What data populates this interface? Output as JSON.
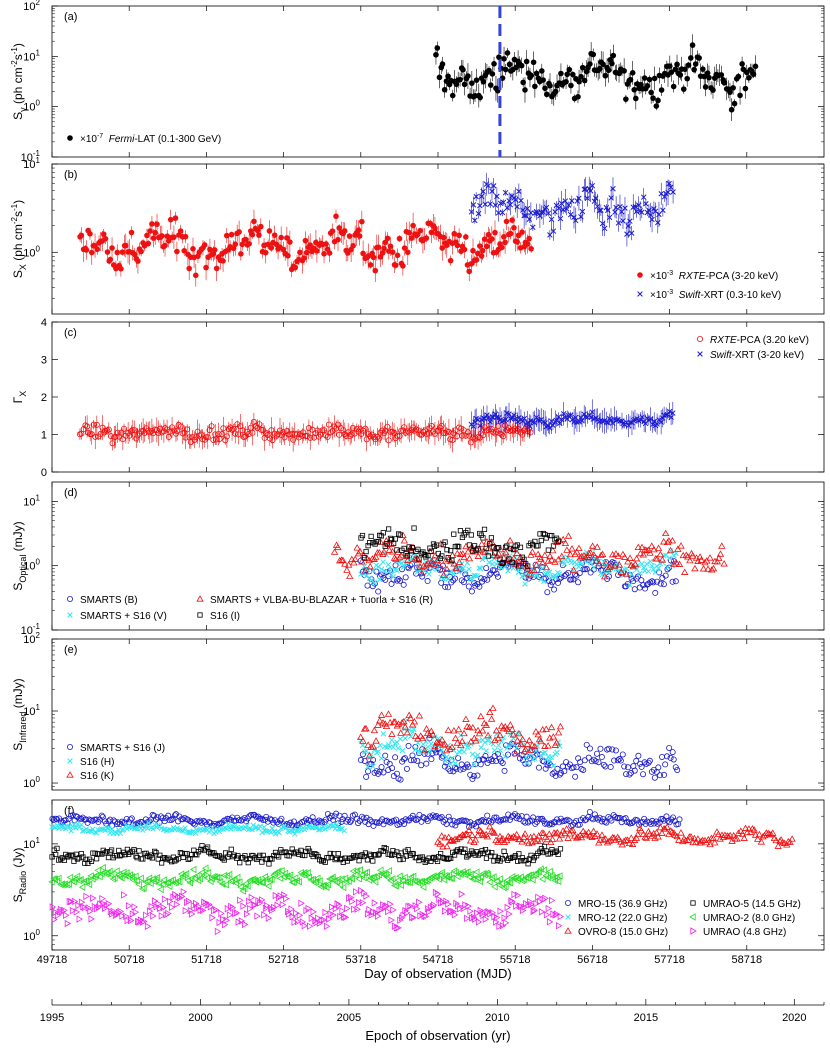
{
  "figure": {
    "colors": {
      "black": "#000000",
      "red": "#ee1111",
      "blue": "#1a1acc",
      "cyan": "#33e6f0",
      "green": "#22dd22",
      "magenta": "#ee22ee",
      "dash": "#3344dd"
    },
    "bottom_axis": {
      "label": "Day of observation (MJD)",
      "ticks": [
        "49718",
        "50718",
        "51718",
        "52718",
        "53718",
        "54718",
        "55718",
        "56718",
        "57718",
        "58718"
      ],
      "range": [
        49718,
        59718
      ]
    },
    "epoch_axis": {
      "label": "Epoch of observation (yr)",
      "ticks": [
        "1995",
        "2000",
        "2005",
        "2010",
        "2015",
        "2020"
      ],
      "range": [
        1995,
        2021
      ]
    }
  },
  "chart_data": [
    {
      "type": "scatter",
      "panel": "(a)",
      "yscale": "log",
      "ylim": [
        0.1,
        100
      ],
      "ylabel": {
        "main": "S",
        "sub": "γ",
        "unit": " (ph cm",
        "sup1": "-2",
        "mid": "s",
        "sup2": "-1",
        "end": ")"
      },
      "yticks": [
        {
          "v": 0.1,
          "b": "10",
          "e": "-1"
        },
        {
          "v": 1,
          "b": "10",
          "e": "0"
        },
        {
          "v": 10,
          "b": "10",
          "e": "1"
        },
        {
          "v": 100,
          "b": "10",
          "e": "2"
        }
      ],
      "vline_mjd": 55520,
      "legend": [
        {
          "marker": "dot",
          "color": "#000000",
          "factor": "×10",
          "factor_exp": "-7",
          "instrument": "Fermi",
          "suffix": "-LAT (0.1-300 GeV)"
        }
      ],
      "series": [
        {
          "name": "Fermi-LAT (0.1-300 GeV)",
          "color": "#000000",
          "marker": "dot",
          "mjd_range": [
            54690,
            58830
          ],
          "level": 4,
          "spread": 0.38
        }
      ]
    },
    {
      "type": "scatter",
      "panel": "(b)",
      "yscale": "log",
      "ylim": [
        0.2,
        10
      ],
      "ylabel": {
        "main": "S",
        "sub": "X",
        "unit": " (ph cm",
        "sup1": "-2",
        "mid": "s",
        "sup2": "-1",
        "end": ")"
      },
      "yticks": [
        {
          "v": 1,
          "b": "10",
          "e": "0"
        },
        {
          "v": 10,
          "b": "10",
          "e": "1"
        }
      ],
      "legend": [
        {
          "marker": "dot",
          "color": "#ee1111",
          "factor": "×10",
          "factor_exp": "-3",
          "instrument": "RXTE",
          "suffix": "-PCA (3-20 keV)"
        },
        {
          "marker": "x",
          "color": "#1a1acc",
          "factor": "×10",
          "factor_exp": "-3",
          "instrument": "Swift",
          "suffix": "-XRT (0.3-10 keV)"
        }
      ],
      "series": [
        {
          "name": "RXTE-PCA (3-20 keV)",
          "color": "#ee1111",
          "marker": "dot",
          "mjd_range": [
            50080,
            55920
          ],
          "level": 1.2,
          "spread": 0.22
        },
        {
          "name": "Swift-XRT (0.3-10 keV)",
          "color": "#1a1acc",
          "marker": "x",
          "mjd_range": [
            55150,
            57760
          ],
          "level": 3.2,
          "spread": 0.22
        }
      ]
    },
    {
      "type": "scatter",
      "panel": "(c)",
      "yscale": "linear",
      "ylim": [
        0,
        4
      ],
      "ylabel": {
        "main": "Γ",
        "sub": "X"
      },
      "yticks": [
        {
          "v": 0,
          "b": "0"
        },
        {
          "v": 1,
          "b": "1"
        },
        {
          "v": 2,
          "b": "2"
        },
        {
          "v": 3,
          "b": "3"
        },
        {
          "v": 4,
          "b": "4"
        }
      ],
      "legend": [
        {
          "marker": "circle",
          "color": "#ee1111",
          "instrument": "RXTE",
          "suffix": "-PCA (3.20 keV)"
        },
        {
          "marker": "x",
          "color": "#1a1acc",
          "instrument": "Swift",
          "suffix": "-XRT (3-20 keV)"
        }
      ],
      "series": [
        {
          "name": "RXTE-PCA (3.20 keV)",
          "color": "#ee1111",
          "marker": "circle",
          "mjd_range": [
            50080,
            55920
          ],
          "level": 1.05,
          "spread": 0.15
        },
        {
          "name": "Swift-XRT (3-20 keV)",
          "color": "#1a1acc",
          "marker": "x",
          "mjd_range": [
            55150,
            57760
          ],
          "level": 1.4,
          "spread": 0.12
        }
      ]
    },
    {
      "type": "scatter",
      "panel": "(d)",
      "yscale": "log",
      "ylim": [
        0.1,
        20
      ],
      "ylabel": {
        "main": "S",
        "sub": "Optical",
        "unit": " (mJy)"
      },
      "yticks": [
        {
          "v": 0.1,
          "b": "10",
          "e": "-1"
        },
        {
          "v": 1,
          "b": "10",
          "e": "0"
        },
        {
          "v": 10,
          "b": "10",
          "e": "1"
        }
      ],
      "legend": [
        {
          "marker": "circle",
          "color": "#1a1acc",
          "text": "SMARTS (B)"
        },
        {
          "marker": "triangle",
          "color": "#ee1111",
          "text": "SMARTS + VLBA-BU-BLAZAR + Tuorla + S16 (R)"
        },
        {
          "marker": "x",
          "color": "#33e6f0",
          "text": "SMARTS + S16 (V)"
        },
        {
          "marker": "square",
          "color": "#000000",
          "text": "S16 (I)"
        }
      ],
      "series": [
        {
          "name": "SMARTS (B)",
          "color": "#1a1acc",
          "marker": "circle",
          "mjd_range": [
            53720,
            57800
          ],
          "level": 0.75,
          "spread": 0.2
        },
        {
          "name": "SMARTS + S16 (V)",
          "color": "#33e6f0",
          "marker": "x",
          "mjd_range": [
            53720,
            57800
          ],
          "level": 0.95,
          "spread": 0.2
        },
        {
          "name": "SMARTS + VLBA-BU-BLAZAR + Tuorla + S16 (R)",
          "color": "#ee1111",
          "marker": "triangle",
          "mjd_range": [
            53380,
            58420
          ],
          "level": 1.4,
          "spread": 0.22
        },
        {
          "name": "S16 (I)",
          "color": "#000000",
          "marker": "square",
          "mjd_range": [
            53720,
            56280
          ],
          "level": 2.0,
          "spread": 0.25
        }
      ]
    },
    {
      "type": "scatter",
      "panel": "(e)",
      "yscale": "log",
      "ylim": [
        0.8,
        100
      ],
      "ylabel": {
        "main": "S",
        "sub": "Infrared",
        "unit": " (mJy)"
      },
      "yticks": [
        {
          "v": 1,
          "b": "10",
          "e": "0"
        },
        {
          "v": 10,
          "b": "10",
          "e": "1"
        },
        {
          "v": 100,
          "b": "10",
          "e": "2"
        }
      ],
      "legend": [
        {
          "marker": "circle",
          "color": "#1a1acc",
          "text": "SMARTS + S16 (J)"
        },
        {
          "marker": "x",
          "color": "#33e6f0",
          "text": "S16 (H)"
        },
        {
          "marker": "triangle",
          "color": "#ee1111",
          "text": "S16 (K)"
        }
      ],
      "series": [
        {
          "name": "SMARTS + S16 (J)",
          "color": "#1a1acc",
          "marker": "circle",
          "mjd_range": [
            53720,
            57820
          ],
          "level": 2.0,
          "spread": 0.2
        },
        {
          "name": "S16 (H)",
          "color": "#33e6f0",
          "marker": "x",
          "mjd_range": [
            53720,
            56300
          ],
          "level": 3.2,
          "spread": 0.22
        },
        {
          "name": "S16 (K)",
          "color": "#ee1111",
          "marker": "triangle",
          "mjd_range": [
            53720,
            56300
          ],
          "level": 5.0,
          "spread": 0.25
        }
      ]
    },
    {
      "type": "scatter",
      "panel": "(f)",
      "yscale": "log",
      "ylim": [
        0.7,
        30
      ],
      "ylabel": {
        "main": "S",
        "sub": "Radio",
        "unit": " (Jy)"
      },
      "yticks": [
        {
          "v": 1,
          "b": "10",
          "e": "0"
        },
        {
          "v": 10,
          "b": "10",
          "e": "1"
        }
      ],
      "legend": [
        {
          "marker": "circle",
          "color": "#1a1acc",
          "text": "MRO-15 (36.9 GHz)"
        },
        {
          "marker": "x",
          "color": "#33e6f0",
          "text": "MRO-12 (22.0 GHz)"
        },
        {
          "marker": "triangle",
          "color": "#ee1111",
          "text": "OVRO-8 (15.0 GHz)"
        },
        {
          "marker": "square",
          "color": "#000000",
          "text": "UMRAO-5 (14.5 GHz)"
        },
        {
          "marker": "tri-left",
          "color": "#22dd22",
          "text": "UMRAO-2 (8.0 GHz)"
        },
        {
          "marker": "tri-right",
          "color": "#ee22ee",
          "text": "UMRAO (4.8 GHz)"
        }
      ],
      "series": [
        {
          "name": "MRO-15 (36.9 GHz)",
          "color": "#1a1acc",
          "marker": "circle",
          "mjd_range": [
            49720,
            57850
          ],
          "level": 18,
          "spread": 0.05
        },
        {
          "name": "MRO-12 (22.0 GHz)",
          "color": "#33e6f0",
          "marker": "x",
          "mjd_range": [
            49720,
            53500
          ],
          "level": 14.5,
          "spread": 0.04
        },
        {
          "name": "OVRO-8 (15.0 GHz)",
          "color": "#ee1111",
          "marker": "triangle",
          "mjd_range": [
            54720,
            59300
          ],
          "level": 12,
          "spread": 0.08
        },
        {
          "name": "UMRAO-5 (14.5 GHz)",
          "color": "#000000",
          "marker": "square",
          "mjd_range": [
            49720,
            56300
          ],
          "level": 7.5,
          "spread": 0.07
        },
        {
          "name": "UMRAO-2 (8.0 GHz)",
          "color": "#22dd22",
          "marker": "tri-left",
          "mjd_range": [
            49720,
            56300
          ],
          "level": 4.2,
          "spread": 0.08
        },
        {
          "name": "UMRAO (4.8 GHz)",
          "color": "#ee22ee",
          "marker": "tri-right",
          "mjd_range": [
            49720,
            56300
          ],
          "level": 1.9,
          "spread": 0.15
        }
      ]
    }
  ]
}
